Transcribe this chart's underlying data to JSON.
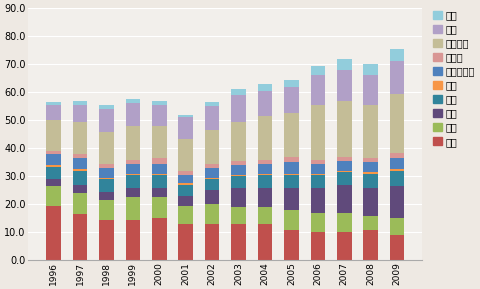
{
  "years": [
    "1996",
    "1997",
    "1998",
    "1999",
    "2000",
    "2001",
    "2002",
    "2003",
    "2004",
    "2005",
    "2006",
    "2007",
    "2008",
    "2009"
  ],
  "series": {
    "일본": [
      19.5,
      16.5,
      14.5,
      14.5,
      15.0,
      13.0,
      13.0,
      13.0,
      13.0,
      11.0,
      10.0,
      10.0,
      11.0,
      9.0
    ],
    "한국": [
      7.0,
      7.5,
      7.0,
      8.0,
      7.5,
      6.5,
      7.0,
      6.0,
      6.0,
      7.0,
      7.0,
      7.0,
      5.0,
      6.0
    ],
    "중국": [
      2.5,
      3.0,
      3.0,
      3.5,
      3.5,
      3.5,
      5.0,
      7.0,
      7.0,
      8.0,
      9.0,
      10.0,
      10.0,
      11.5
    ],
    "홍콩": [
      4.5,
      5.0,
      4.5,
      4.5,
      4.5,
      4.0,
      4.0,
      4.0,
      4.5,
      4.5,
      4.5,
      4.5,
      5.0,
      5.5
    ],
    "인니": [
      0.5,
      0.5,
      0.5,
      0.5,
      0.5,
      0.5,
      0.5,
      0.5,
      0.5,
      0.5,
      0.5,
      0.5,
      0.5,
      0.5
    ],
    "말레이시아": [
      4.0,
      4.0,
      3.5,
      3.5,
      3.5,
      3.0,
      3.5,
      3.5,
      3.5,
      4.0,
      3.5,
      3.5,
      3.5,
      4.0
    ],
    "필리핀": [
      1.0,
      1.5,
      1.5,
      1.5,
      2.0,
      1.5,
      1.5,
      1.5,
      1.5,
      2.0,
      1.5,
      1.5,
      1.5,
      2.0
    ],
    "싱가포르": [
      11.0,
      11.5,
      11.5,
      12.0,
      11.5,
      11.5,
      12.0,
      14.0,
      15.5,
      15.5,
      19.5,
      20.0,
      19.0,
      21.0
    ],
    "대만": [
      5.5,
      6.0,
      8.0,
      8.0,
      7.5,
      7.5,
      8.5,
      9.5,
      9.0,
      9.5,
      10.5,
      11.0,
      10.5,
      11.5
    ],
    "태국": [
      1.0,
      1.5,
      1.5,
      1.5,
      1.5,
      1.0,
      1.5,
      2.0,
      2.5,
      2.5,
      3.5,
      4.0,
      4.0,
      4.5
    ]
  },
  "colors": {
    "일본": "#C0504D",
    "한국": "#9BBB59",
    "중국": "#604A7B",
    "홍콩": "#31849B",
    "인니": "#F79646",
    "말레이시아": "#4F81BD",
    "필리핀": "#D99694",
    "싱가포르": "#C4BD97",
    "대만": "#B1A0C7",
    "태국": "#92CDDC"
  },
  "ylim": [
    0,
    90
  ],
  "yticks": [
    0.0,
    10.0,
    20.0,
    30.0,
    40.0,
    50.0,
    60.0,
    70.0,
    80.0,
    90.0
  ],
  "bg_color": "#EEE9E3",
  "plot_bg_color": "#F2EFEB",
  "grid_color": "#FFFFFF",
  "series_order": [
    "일본",
    "한국",
    "중국",
    "홍콩",
    "인니",
    "말레이시아",
    "필리핀",
    "싱가포르",
    "대만",
    "태국"
  ],
  "legend_order": [
    "태국",
    "대만",
    "싱가포르",
    "필리핀",
    "말레이시아",
    "인니",
    "홍콩",
    "중국",
    "한국",
    "일본"
  ],
  "figsize": [
    4.81,
    2.89
  ],
  "dpi": 100
}
